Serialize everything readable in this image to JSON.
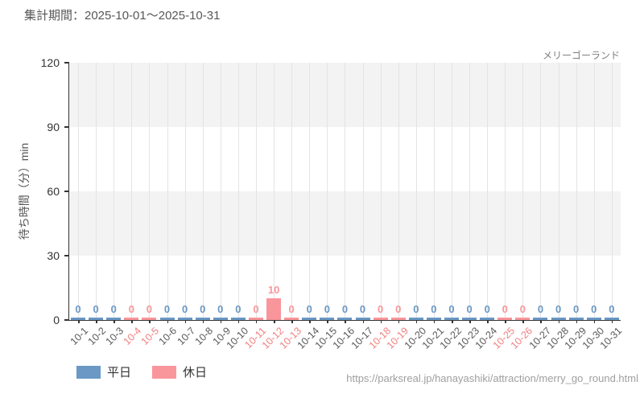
{
  "header": {
    "title": "集計期間：2025-10-01～2025-10-31"
  },
  "footer": {
    "url": "https://parksreal.jp/hanayashiki/attraction/merry_go_round.html"
  },
  "chart_data": {
    "type": "bar",
    "title": "メリーゴーランド",
    "ylabel": "待ち時間（分）min",
    "ylim": [
      0,
      120
    ],
    "yticks": [
      0,
      30,
      60,
      90,
      120
    ],
    "grid": {
      "vertical_per_day": true,
      "alternating_horizontal_bands": true
    },
    "legend_position": "bottom-left",
    "legend": [
      {
        "name": "平日",
        "key": "weekday",
        "color": "#6b98c4"
      },
      {
        "name": "休日",
        "key": "holiday",
        "color": "#f9969b"
      }
    ],
    "x_label_colors": {
      "weekday": "#595959",
      "holiday": "#f08080"
    },
    "categories": [
      "10-1",
      "10-2",
      "10-3",
      "10-4",
      "10-5",
      "10-6",
      "10-7",
      "10-8",
      "10-9",
      "10-10",
      "10-11",
      "10-12",
      "10-13",
      "10-14",
      "10-15",
      "10-16",
      "10-17",
      "10-18",
      "10-19",
      "10-20",
      "10-21",
      "10-22",
      "10-23",
      "10-24",
      "10-25",
      "10-26",
      "10-27",
      "10-28",
      "10-29",
      "10-30",
      "10-31"
    ],
    "series": [
      {
        "name": "平日",
        "color": "#6b98c4",
        "values": [
          0,
          0,
          0,
          null,
          null,
          0,
          0,
          0,
          0,
          0,
          null,
          null,
          null,
          0,
          0,
          0,
          0,
          null,
          null,
          0,
          0,
          0,
          0,
          0,
          null,
          null,
          0,
          0,
          0,
          0,
          0
        ]
      },
      {
        "name": "休日",
        "color": "#f9969b",
        "values": [
          null,
          null,
          null,
          0,
          0,
          null,
          null,
          null,
          null,
          null,
          0,
          10,
          0,
          null,
          null,
          null,
          null,
          0,
          0,
          null,
          null,
          null,
          null,
          null,
          0,
          0,
          null,
          null,
          null,
          null,
          null
        ]
      }
    ]
  },
  "style": {
    "band_color": "#f3f3f3",
    "gridline_color": "#e4e4e4",
    "axis_color": "#333333"
  }
}
